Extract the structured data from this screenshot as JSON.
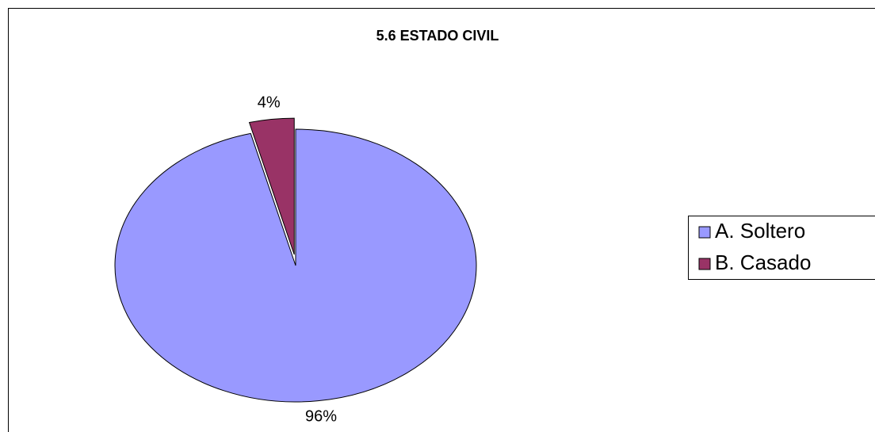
{
  "chart_data": {
    "type": "pie",
    "title": "5.6 ESTADO CIVIL",
    "categories": [
      "A. Soltero",
      "B. Casado"
    ],
    "values": [
      96,
      4
    ],
    "value_labels": [
      "96%",
      "4%"
    ],
    "colors": [
      "#9999ff",
      "#993366"
    ],
    "legend": "right"
  }
}
